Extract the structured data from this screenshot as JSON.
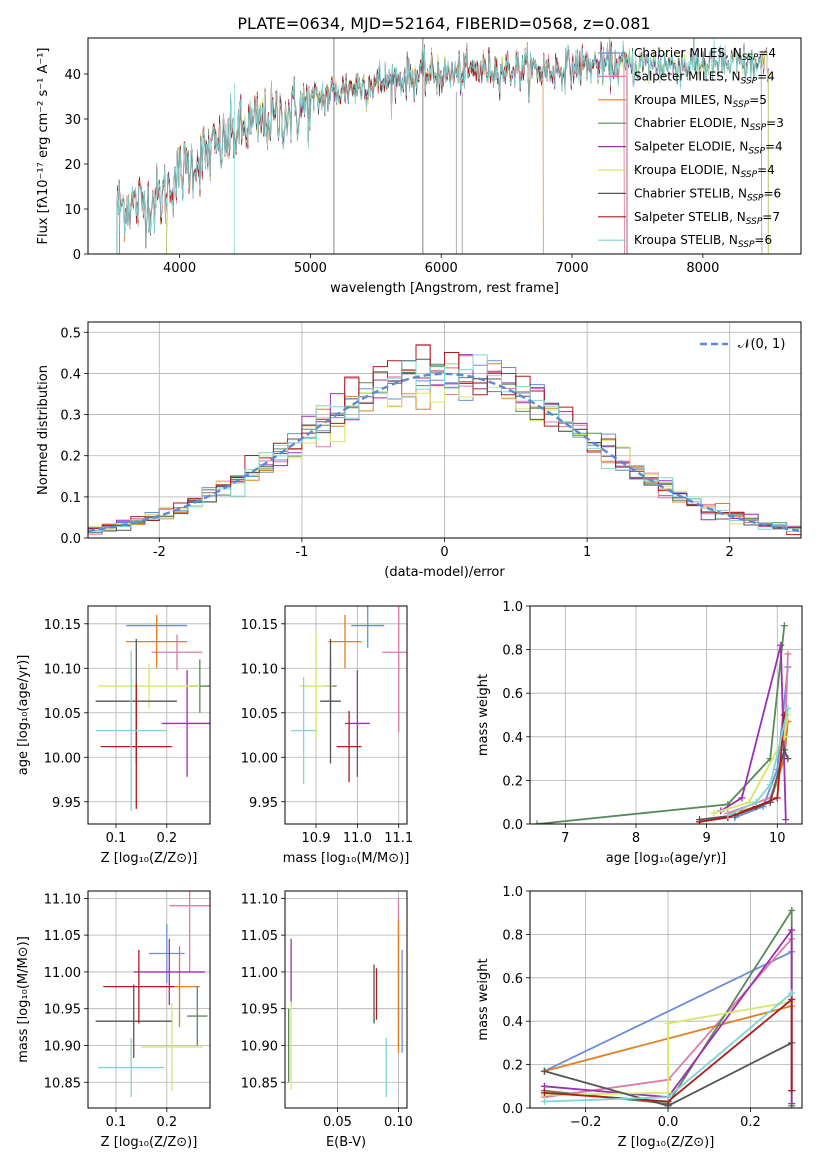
{
  "figure_title": "PLATE=0634, MJD=52164, FIBERID=0568, z=0.081",
  "model_colors": [
    "#6a8fd8",
    "#e07aa9",
    "#e07f24",
    "#5a8a5a",
    "#9b30b0",
    "#d4e86a",
    "#555555",
    "#b01b1b",
    "#7fd6d6"
  ],
  "chart_data": [
    {
      "id": "spectrum",
      "type": "line",
      "title": "PLATE=0634, MJD=52164, FIBERID=0568, z=0.081",
      "xlabel": "wavelength [Angstrom, rest frame]",
      "ylabel": "Flux [fλ10⁻¹⁷ erg cm⁻² s⁻¹ A⁻¹]",
      "xlim": [
        3300,
        8750
      ],
      "ylim": [
        0,
        48
      ],
      "xticks": [
        4000,
        5000,
        6000,
        7000,
        8000
      ],
      "yticks": [
        0,
        10,
        20,
        30,
        40
      ],
      "grid": false,
      "legend_position": "top-right",
      "legend": [
        {
          "label": "Chabrier MILES, N",
          "sub": "SSP",
          "suffix": "=4",
          "color": "#6a8fd8"
        },
        {
          "label": "Salpeter MILES, N",
          "sub": "SSP",
          "suffix": "=4",
          "color": "#e07aa9"
        },
        {
          "label": "Kroupa MILES, N",
          "sub": "SSP",
          "suffix": "=5",
          "color": "#e07f24"
        },
        {
          "label": "Chabrier ELODIE, N",
          "sub": "SSP",
          "suffix": "=3",
          "color": "#5a8a5a"
        },
        {
          "label": "Salpeter ELODIE, N",
          "sub": "SSP",
          "suffix": "=4",
          "color": "#9b30b0"
        },
        {
          "label": "Kroupa ELODIE, N",
          "sub": "SSP",
          "suffix": "=4",
          "color": "#d4e86a"
        },
        {
          "label": "Chabrier STELIB, N",
          "sub": "SSP",
          "suffix": "=6",
          "color": "#555555"
        },
        {
          "label": "Salpeter STELIB, N",
          "sub": "SSP",
          "suffix": "=7",
          "color": "#b01b1b"
        },
        {
          "label": "Kroupa STELIB, N",
          "sub": "SSP",
          "suffix": "=6",
          "color": "#7fd6d6"
        }
      ],
      "continuum": [
        [
          3520,
          11
        ],
        [
          3700,
          11
        ],
        [
          3850,
          12
        ],
        [
          3950,
          16
        ],
        [
          4000,
          18
        ],
        [
          4100,
          20
        ],
        [
          4300,
          24
        ],
        [
          4500,
          28
        ],
        [
          4700,
          30
        ],
        [
          4900,
          32
        ],
        [
          5100,
          35
        ],
        [
          5300,
          37
        ],
        [
          5500,
          38
        ],
        [
          5700,
          39
        ],
        [
          5900,
          40
        ],
        [
          6100,
          40
        ],
        [
          6300,
          41
        ],
        [
          6500,
          41
        ],
        [
          6700,
          41
        ],
        [
          6900,
          41
        ],
        [
          7100,
          42
        ],
        [
          7300,
          42
        ],
        [
          7500,
          42
        ],
        [
          7800,
          42
        ],
        [
          8000,
          42
        ],
        [
          8300,
          42
        ],
        [
          8500,
          42
        ]
      ],
      "model_ranges": [
        [
          3540,
          7400
        ],
        [
          3540,
          7400
        ],
        [
          3540,
          6780
        ],
        [
          3900,
          8500
        ],
        [
          3900,
          8500
        ],
        [
          3900,
          8500
        ],
        [
          3520,
          8450
        ],
        [
          3520,
          7420
        ],
        [
          3520,
          8450
        ]
      ]
    },
    {
      "id": "residuals",
      "type": "line",
      "xlabel": "(data-model)/error",
      "ylabel": "Normed distribution",
      "xlim": [
        -2.5,
        2.5
      ],
      "ylim": [
        0,
        0.525
      ],
      "xticks": [
        -2,
        -1,
        0,
        1,
        2
      ],
      "yticks": [
        0.0,
        0.1,
        0.2,
        0.3,
        0.4,
        0.5
      ],
      "grid": true,
      "legend_position": "top-right",
      "legend": [
        {
          "label": "𝒩(0, 1)",
          "color": "#5b8ad6",
          "style": "dashed"
        }
      ],
      "bin_width": 0.1,
      "reference": "normal(0,1)"
    },
    {
      "id": "age_vs_Z",
      "type": "scatter",
      "xlabel": "Z [log₁₀(Z/Z⊙)]",
      "ylabel": "age  [log₁₀(age/yr)]",
      "xlim": [
        0.045,
        0.285
      ],
      "ylim": [
        9.925,
        10.17
      ],
      "xticks": [
        0.1,
        0.2
      ],
      "xticklabels": [
        "0.1",
        "0.2"
      ],
      "yticks": [
        9.95,
        10.0,
        10.05,
        10.1,
        10.15
      ],
      "yticklabels": [
        "9.95",
        "10.00",
        "10.05",
        "10.10",
        "10.15"
      ],
      "grid": true,
      "points": [
        {
          "x": 0.18,
          "xerr": 0.06,
          "y": 10.148,
          "yerr": 0.01
        },
        {
          "x": 0.22,
          "xerr": 0.05,
          "y": 10.118,
          "yerr": 0.02
        },
        {
          "x": 0.18,
          "xerr": 0.06,
          "y": 10.13,
          "yerr": 0.03
        },
        {
          "x": 0.265,
          "xerr": 0.02,
          "y": 10.08,
          "yerr": 0.03
        },
        {
          "x": 0.24,
          "xerr": 0.05,
          "y": 10.038,
          "yerr": 0.06
        },
        {
          "x": 0.165,
          "xerr": 0.1,
          "y": 10.08,
          "yerr": 0.025
        },
        {
          "x": 0.14,
          "xerr": 0.08,
          "y": 10.063,
          "yerr": 0.07
        },
        {
          "x": 0.14,
          "xerr": 0.07,
          "y": 10.012,
          "yerr": 0.07
        },
        {
          "x": 0.13,
          "xerr": 0.07,
          "y": 10.03,
          "yerr": 0.09
        }
      ]
    },
    {
      "id": "age_vs_mass",
      "type": "scatter",
      "xlabel": "mass [log₁₀(M/M⊙)]",
      "ylabel": "",
      "xlim": [
        10.825,
        11.12
      ],
      "ylim": [
        9.925,
        10.17
      ],
      "xticks": [
        10.9,
        11.0,
        11.1
      ],
      "xticklabels": [
        "10.9",
        "11.0",
        "11.1"
      ],
      "yticks": [
        9.95,
        10.0,
        10.05,
        10.1,
        10.15
      ],
      "yticklabels": [
        "9.95",
        "10.00",
        "10.05",
        "10.10",
        "10.15"
      ],
      "grid": true,
      "points": [
        {
          "x": 11.025,
          "xerr": 0.04,
          "y": 10.148,
          "yerr": 0.025
        },
        {
          "x": 11.1,
          "xerr": 0.04,
          "y": 10.118,
          "yerr": 0.09
        },
        {
          "x": 10.97,
          "xerr": 0.04,
          "y": 10.13,
          "yerr": 0.03
        },
        {
          "x": 10.935,
          "xerr": 0.015,
          "y": 10.08,
          "yerr": 0.03
        },
        {
          "x": 11.0,
          "xerr": 0.03,
          "y": 10.038,
          "yerr": 0.06
        },
        {
          "x": 10.9,
          "xerr": 0.04,
          "y": 10.08,
          "yerr": 0.06
        },
        {
          "x": 10.935,
          "xerr": 0.025,
          "y": 10.063,
          "yerr": 0.07
        },
        {
          "x": 10.98,
          "xerr": 0.03,
          "y": 10.012,
          "yerr": 0.04
        },
        {
          "x": 10.87,
          "xerr": 0.03,
          "y": 10.03,
          "yerr": 0.06
        }
      ]
    },
    {
      "id": "mass_weight_vs_age",
      "type": "line",
      "xlabel": "age  [log₁₀(age/yr)]",
      "ylabel": "mass weight",
      "xlim": [
        6.5,
        10.35
      ],
      "ylim": [
        0,
        1.0
      ],
      "xticks": [
        7,
        8,
        9,
        10
      ],
      "xticklabels": [
        "7",
        "8",
        "9",
        "10"
      ],
      "yticks": [
        0.0,
        0.2,
        0.4,
        0.6,
        0.8,
        1.0
      ],
      "yticklabels": [
        "0.0",
        "0.2",
        "0.4",
        "0.6",
        "0.8",
        "1.0"
      ],
      "grid": true,
      "series": [
        {
          "points": [
            [
              9.4,
              0.03
            ],
            [
              9.8,
              0.08
            ],
            [
              10.0,
              0.25
            ],
            [
              10.15,
              0.72
            ]
          ]
        },
        {
          "points": [
            [
              9.3,
              0.05
            ],
            [
              9.9,
              0.12
            ],
            [
              10.1,
              0.3
            ],
            [
              10.15,
              0.78
            ]
          ]
        },
        {
          "points": [
            [
              9.5,
              0.06
            ],
            [
              9.9,
              0.1
            ],
            [
              10.1,
              0.3
            ],
            [
              10.15,
              0.47
            ]
          ]
        },
        {
          "points": [
            [
              6.6,
              0.0
            ],
            [
              9.3,
              0.09
            ],
            [
              9.9,
              0.3
            ],
            [
              10.1,
              0.91
            ]
          ]
        },
        {
          "points": [
            [
              9.2,
              0.06
            ],
            [
              9.5,
              0.12
            ],
            [
              10.05,
              0.82
            ],
            [
              10.12,
              0.02
            ]
          ]
        },
        {
          "points": [
            [
              9.1,
              0.05
            ],
            [
              9.6,
              0.1
            ],
            [
              10.1,
              0.4
            ],
            [
              10.15,
              0.5
            ]
          ]
        },
        {
          "points": [
            [
              8.9,
              0.02
            ],
            [
              9.4,
              0.04
            ],
            [
              9.9,
              0.1
            ],
            [
              10.1,
              0.34
            ],
            [
              10.15,
              0.3
            ]
          ]
        },
        {
          "points": [
            [
              8.9,
              0.01
            ],
            [
              9.3,
              0.03
            ],
            [
              9.7,
              0.08
            ],
            [
              10.0,
              0.12
            ],
            [
              10.1,
              0.5
            ]
          ]
        },
        {
          "points": [
            [
              9.3,
              0.04
            ],
            [
              9.7,
              0.1
            ],
            [
              9.9,
              0.18
            ],
            [
              10.15,
              0.53
            ]
          ]
        }
      ]
    },
    {
      "id": "mass_vs_Z",
      "type": "scatter",
      "xlabel": "Z [log₁₀(Z/Z⊙)]",
      "ylabel": "mass [log₁₀(M/M⊙)]",
      "xlim": [
        0.045,
        0.285
      ],
      "ylim": [
        10.815,
        11.11
      ],
      "xticks": [
        0.1,
        0.2
      ],
      "xticklabels": [
        "0.1",
        "0.2"
      ],
      "yticks": [
        10.85,
        10.9,
        10.95,
        11.0,
        11.05,
        11.1
      ],
      "yticklabels": [
        "10.85",
        "10.90",
        "10.95",
        "11.00",
        "11.05",
        "11.10"
      ],
      "grid": true,
      "points": [
        {
          "x": 0.2,
          "xerr": 0.035,
          "y": 11.025,
          "yerr": 0.04
        },
        {
          "x": 0.245,
          "xerr": 0.04,
          "y": 11.09,
          "yerr": 0.09
        },
        {
          "x": 0.225,
          "xerr": 0.04,
          "y": 10.98,
          "yerr": 0.055
        },
        {
          "x": 0.26,
          "xerr": 0.02,
          "y": 10.94,
          "yerr": 0.04
        },
        {
          "x": 0.205,
          "xerr": 0.07,
          "y": 11.0,
          "yerr": 0.045
        },
        {
          "x": 0.21,
          "xerr": 0.06,
          "y": 10.898,
          "yerr": 0.06
        },
        {
          "x": 0.135,
          "xerr": 0.075,
          "y": 10.933,
          "yerr": 0.05
        },
        {
          "x": 0.145,
          "xerr": 0.07,
          "y": 10.98,
          "yerr": 0.05
        },
        {
          "x": 0.13,
          "xerr": 0.065,
          "y": 10.87,
          "yerr": 0.04
        }
      ]
    },
    {
      "id": "mass_vs_EBV",
      "type": "scatter",
      "xlabel": "E(B-V)",
      "ylabel": "",
      "xlim": [
        0.007,
        0.107
      ],
      "ylim": [
        10.815,
        11.11
      ],
      "xticks": [
        0.05,
        0.1
      ],
      "xticklabels": [
        "0.05",
        "0.10"
      ],
      "yticks": [
        10.85,
        10.9,
        10.95,
        11.0,
        11.05,
        11.1
      ],
      "yticklabels": [
        "10.85",
        "10.90",
        "10.95",
        "11.00",
        "11.05",
        "11.10"
      ],
      "grid": true,
      "points": [
        {
          "x": 0.103,
          "xerr": 0.0,
          "y": 10.96,
          "yerr": 0.07
        },
        {
          "x": 0.1,
          "xerr": 0.0,
          "y": 11.0,
          "yerr": 0.1
        },
        {
          "x": 0.1,
          "xerr": 0.0,
          "y": 10.98,
          "yerr": 0.09
        },
        {
          "x": 0.01,
          "xerr": 0.0,
          "y": 10.9,
          "yerr": 0.05
        },
        {
          "x": 0.012,
          "xerr": 0.0,
          "y": 11.0,
          "yerr": 0.045
        },
        {
          "x": 0.012,
          "xerr": 0.0,
          "y": 10.9,
          "yerr": 0.06
        },
        {
          "x": 0.08,
          "xerr": 0.0,
          "y": 10.97,
          "yerr": 0.04
        },
        {
          "x": 0.082,
          "xerr": 0.0,
          "y": 10.97,
          "yerr": 0.035
        },
        {
          "x": 0.09,
          "xerr": 0.0,
          "y": 10.87,
          "yerr": 0.04
        }
      ]
    },
    {
      "id": "mass_weight_vs_Z",
      "type": "line",
      "xlabel": "Z [log₁₀(Z/Z⊙)]",
      "ylabel": "mass weight",
      "xlim": [
        -0.335,
        0.325
      ],
      "ylim": [
        0,
        1.0
      ],
      "xticks": [
        -0.2,
        0.0,
        0.2
      ],
      "xticklabels": [
        "−0.2",
        "0.0",
        "0.2"
      ],
      "yticks": [
        0.0,
        0.2,
        0.4,
        0.6,
        0.8,
        1.0
      ],
      "yticklabels": [
        "0.0",
        "0.2",
        "0.4",
        "0.6",
        "0.8",
        "1.0"
      ],
      "grid": true,
      "series": [
        {
          "points": [
            [
              -0.3,
              0.17
            ],
            [
              0.3,
              0.72
            ]
          ]
        },
        {
          "points": [
            [
              -0.3,
              0.05
            ],
            [
              0.0,
              0.13
            ],
            [
              0.3,
              0.78
            ],
            [
              0.3,
              0.08
            ]
          ]
        },
        {
          "points": [
            [
              -0.3,
              0.17
            ],
            [
              0.3,
              0.47
            ]
          ]
        },
        {
          "points": [
            [
              -0.3,
              0.08
            ],
            [
              0.0,
              0.02
            ],
            [
              0.3,
              0.91
            ],
            [
              0.3,
              0.01
            ]
          ]
        },
        {
          "points": [
            [
              -0.3,
              0.1
            ],
            [
              0.0,
              0.05
            ],
            [
              0.3,
              0.82
            ],
            [
              0.3,
              0.02
            ]
          ]
        },
        {
          "points": [
            [
              -0.3,
              0.06
            ],
            [
              0.0,
              0.07
            ],
            [
              0.0,
              0.39
            ],
            [
              0.3,
              0.49
            ]
          ]
        },
        {
          "points": [
            [
              -0.3,
              0.17
            ],
            [
              0.0,
              0.01
            ],
            [
              0.3,
              0.3
            ]
          ]
        },
        {
          "points": [
            [
              -0.3,
              0.07
            ],
            [
              0.0,
              0.03
            ],
            [
              0.3,
              0.5
            ],
            [
              0.3,
              0.08
            ]
          ]
        },
        {
          "points": [
            [
              -0.3,
              0.03
            ],
            [
              0.0,
              0.05
            ],
            [
              0.3,
              0.53
            ]
          ]
        }
      ]
    }
  ]
}
